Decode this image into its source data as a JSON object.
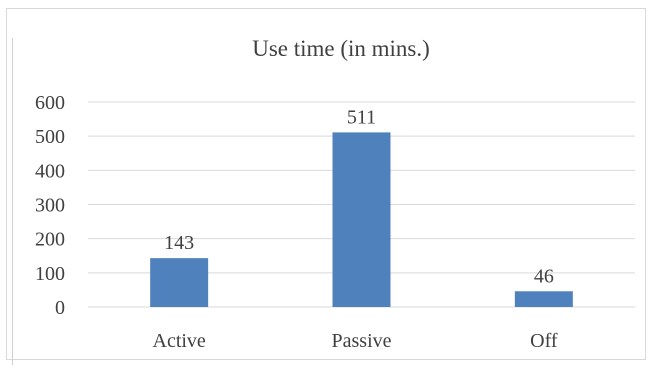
{
  "chart_data": {
    "type": "bar",
    "title": "Use time (in mins.)",
    "xlabel": "",
    "ylabel": "",
    "categories": [
      "Active",
      "Passive",
      "Off"
    ],
    "values": [
      143,
      511,
      46
    ],
    "data_labels": [
      "143",
      "511",
      "46"
    ],
    "ylim": [
      0,
      600
    ],
    "yticks": [
      0,
      100,
      200,
      300,
      400,
      500,
      600
    ],
    "ytick_labels": [
      "0",
      "100",
      "200",
      "300",
      "400",
      "500",
      "600"
    ],
    "grid": true,
    "legend": "none",
    "bar_color": "#4f81bd"
  }
}
